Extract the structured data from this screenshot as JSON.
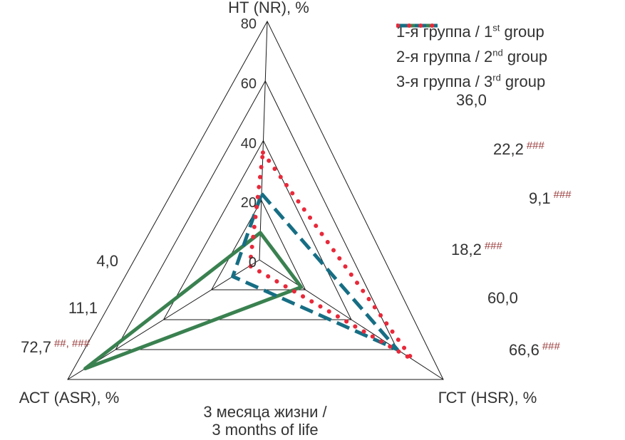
{
  "colors": {
    "group1": "#3a8150",
    "group2": "#166e84",
    "group3": "#e8293a",
    "text": "#333333",
    "marks": "#9a3c3c",
    "grid": "#1a1a1a"
  },
  "legend": {
    "items": [
      {
        "prefix": "1-я группа / 1",
        "sup": "st",
        "suffix": " group",
        "color": "#3a8150",
        "line_style": "solid"
      },
      {
        "prefix": "2-я группа / 2",
        "sup": "nd",
        "suffix": " group",
        "color": "#166e84",
        "line_style": "dashed"
      },
      {
        "prefix": "3-я группа / 3",
        "sup": "rd",
        "suffix": " group",
        "color": "#e8293a",
        "line_style": "dotted"
      }
    ]
  },
  "chart_data": {
    "type": "radar",
    "axes": [
      {
        "id": "NT",
        "label": "НТ (NR), %"
      },
      {
        "id": "AST",
        "label": "АСТ (ASR), %"
      },
      {
        "id": "GST",
        "label": "ГСТ (HSR), %"
      }
    ],
    "scale": {
      "min": 0,
      "max": 80,
      "ticks": [
        "0",
        "20",
        "40",
        "60",
        "80"
      ]
    },
    "series": [
      {
        "name": "1-я группа / 1st group",
        "line_style": "solid",
        "color": "#3a8150",
        "values": {
          "NT": 9.1,
          "AST": 72.7,
          "GST": 18.2
        }
      },
      {
        "name": "2-я группа / 2nd group",
        "line_style": "dashed",
        "color": "#166e84",
        "values": {
          "NT": 22.2,
          "AST": 11.1,
          "GST": 60.0
        }
      },
      {
        "name": "3-я группа / 3rd group",
        "line_style": "dotted",
        "color": "#e8293a",
        "values": {
          "NT": 36.0,
          "AST": 4.0,
          "GST": 66.6
        }
      }
    ],
    "point_labels": [
      {
        "axis": "NT",
        "group": 3,
        "value": "36,0",
        "marks": ""
      },
      {
        "axis": "NT",
        "group": 2,
        "value": "22,2",
        "marks": "###"
      },
      {
        "axis": "NT",
        "group": 1,
        "value": "9,1",
        "marks": "###"
      },
      {
        "axis": "GST",
        "group": 1,
        "value": "18,2",
        "marks": "###"
      },
      {
        "axis": "GST",
        "group": 2,
        "value": "60,0",
        "marks": ""
      },
      {
        "axis": "GST",
        "group": 3,
        "value": "66,6",
        "marks": "###"
      },
      {
        "axis": "AST",
        "group": 3,
        "value": "4,0",
        "marks": ""
      },
      {
        "axis": "AST",
        "group": 2,
        "value": "11,1",
        "marks": ""
      },
      {
        "axis": "AST",
        "group": 1,
        "value": "72,7",
        "marks": "##, ###"
      }
    ],
    "caption": [
      "3 месяца жизни /",
      "3 months of life"
    ]
  }
}
